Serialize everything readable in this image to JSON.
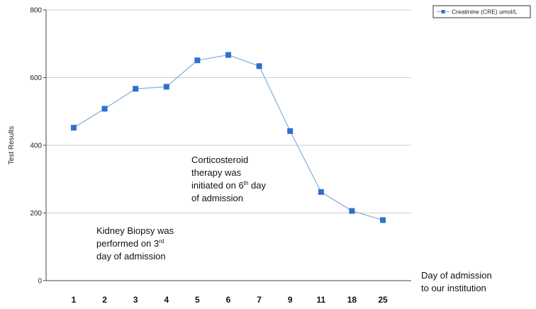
{
  "chart_data": {
    "type": "line",
    "title": "",
    "ylabel": "Test Results",
    "xlabel_line1": "Day of admission",
    "xlabel_line2": "to our institution",
    "categories": [
      "1",
      "2",
      "3",
      "4",
      "5",
      "6",
      "7",
      "9",
      "11",
      "18",
      "25"
    ],
    "series": [
      {
        "name": "Creatinine (CRE) umol/L",
        "values": [
          452,
          508,
          567,
          573,
          651,
          667,
          634,
          442,
          262,
          206,
          179
        ],
        "color": "#2f6fd0",
        "line_color": "#8fb1d6"
      }
    ],
    "ylim": [
      0,
      800
    ],
    "yticks": [
      0,
      200,
      400,
      600,
      800
    ],
    "grid": true,
    "legend_position": "top-right",
    "annotations": {
      "steroid": {
        "line1": "Corticosteroid",
        "line2": "therapy was",
        "line3_pre": "initiated on 6",
        "line3_sup": "th",
        "line3_post": " day",
        "line4": "of admission"
      },
      "biopsy": {
        "line1": "Kidney Biopsy was",
        "line2_pre": "performed on 3",
        "line2_sup": "rd",
        "line3": "day of admission"
      }
    }
  }
}
